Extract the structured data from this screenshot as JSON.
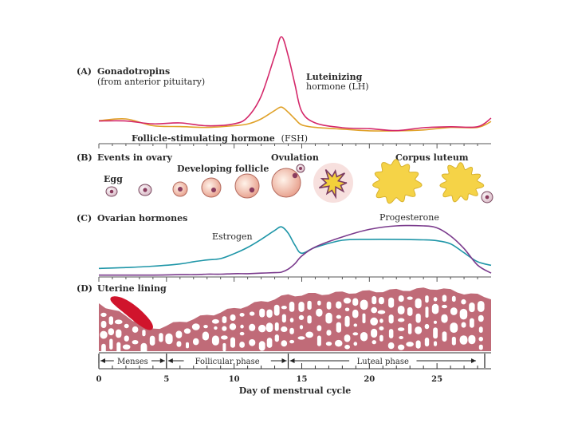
{
  "colors": {
    "lh": "#d4286a",
    "fsh": "#e0a22a",
    "estrogen": "#1f96a8",
    "progesterone": "#7a3a8c",
    "lining": "#c06b78",
    "menses": "#d0142c",
    "corpus": "#f3d03a",
    "egg": "#9c5a7c",
    "axis": "#333333"
  },
  "panels": {
    "a": {
      "letter": "(A)",
      "title": "Gonadotropins",
      "subtitle": "(from anterior pituitary)"
    },
    "b": {
      "letter": "(B)",
      "title": "Events in ovary"
    },
    "c": {
      "letter": "(C)",
      "title": "Ovarian hormones"
    },
    "d": {
      "letter": "(D)",
      "title": "Uterine lining"
    }
  },
  "labels": {
    "lh_line1": "Luteinizing",
    "lh_line2": "hormone (LH)",
    "fsh_bold": "Follicle-stimulating hormone",
    "fsh_abbr": "(FSH)",
    "egg": "Egg",
    "developing_follicle": "Developing follicle",
    "ovulation": "Ovulation",
    "corpus_luteum": "Corpus luteum",
    "estrogen": "Estrogen",
    "progesterone": "Progesterone"
  },
  "phases": [
    {
      "name": "Menses",
      "start": 0,
      "end": 5
    },
    {
      "name": "Follicular phase",
      "start": 5,
      "end": 14
    },
    {
      "name": "Luteal phase",
      "start": 14,
      "end": 28
    }
  ],
  "axis": {
    "title": "Day of menstrual cycle",
    "ticks": [
      "0",
      "5",
      "10",
      "15",
      "20",
      "25"
    ],
    "range": [
      0,
      29
    ]
  },
  "chart_data": [
    {
      "type": "line",
      "title": "Gonadotropins (from anterior pituitary)",
      "xlabel": "Day of menstrual cycle",
      "x": [
        0,
        2,
        4,
        6,
        8,
        10,
        11,
        12,
        13,
        13.5,
        14,
        14.5,
        15,
        16,
        18,
        20,
        22,
        24,
        26,
        28,
        29
      ],
      "series": [
        {
          "name": "Luteinizing hormone (LH)",
          "values": [
            0.12,
            0.12,
            0.09,
            0.1,
            0.07,
            0.09,
            0.16,
            0.38,
            0.8,
            1.0,
            0.8,
            0.5,
            0.22,
            0.1,
            0.05,
            0.04,
            0.02,
            0.05,
            0.06,
            0.06,
            0.15
          ]
        },
        {
          "name": "Follicle-stimulating hormone (FSH)",
          "values": [
            0.14,
            0.16,
            0.08,
            0.07,
            0.06,
            0.08,
            0.1,
            0.16,
            0.26,
            0.3,
            0.24,
            0.16,
            0.09,
            0.06,
            0.04,
            0.02,
            0.02,
            0.03,
            0.06,
            0.06,
            0.13
          ]
        }
      ]
    },
    {
      "type": "line",
      "title": "Ovarian hormones",
      "xlabel": "Day of menstrual cycle",
      "x": [
        0,
        2,
        4,
        6,
        7,
        8,
        9,
        10,
        11,
        12,
        13,
        13.5,
        14,
        14.5,
        15,
        16,
        18,
        20,
        22,
        24,
        25,
        26,
        27,
        28,
        29
      ],
      "series": [
        {
          "name": "Estrogen",
          "values": [
            0.03,
            0.05,
            0.08,
            0.13,
            0.18,
            0.22,
            0.25,
            0.36,
            0.5,
            0.68,
            0.88,
            0.96,
            0.82,
            0.55,
            0.37,
            0.5,
            0.66,
            0.68,
            0.68,
            0.67,
            0.65,
            0.58,
            0.38,
            0.18,
            0.1
          ]
        },
        {
          "name": "Progesterone",
          "values": [
            0.02,
            0.02,
            0.02,
            0.03,
            0.03,
            0.04,
            0.04,
            0.05,
            0.05,
            0.06,
            0.07,
            0.08,
            0.14,
            0.25,
            0.4,
            0.58,
            0.78,
            0.93,
            1.0,
            1.0,
            0.96,
            0.8,
            0.55,
            0.22,
            0.06
          ]
        }
      ]
    }
  ]
}
